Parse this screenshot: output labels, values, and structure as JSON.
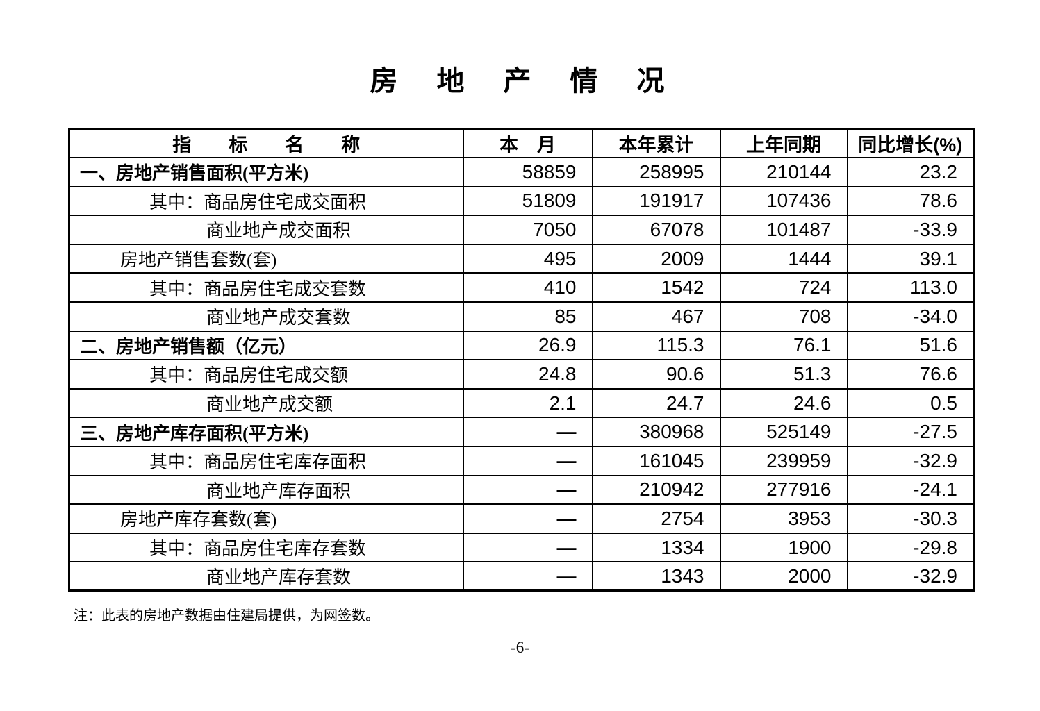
{
  "title": "房　地　产　情　况",
  "table": {
    "headers": [
      "指　　标　　名　　称",
      "本　月",
      "本年累计",
      "上年同期",
      "同比增长(%)"
    ],
    "rows": [
      {
        "label": "一、房地产销售面积(平方米)",
        "style": "section",
        "values": [
          "58859",
          "258995",
          "210144",
          "23.2"
        ]
      },
      {
        "label": "其中：商品房住宅成交面积",
        "style": "sub1",
        "values": [
          "51809",
          "191917",
          "107436",
          "78.6"
        ]
      },
      {
        "label": "商业地产成交面积",
        "style": "sub2",
        "values": [
          "7050",
          "67078",
          "101487",
          "-33.9"
        ]
      },
      {
        "label": "房地产销售套数(套)",
        "style": "item",
        "values": [
          "495",
          "2009",
          "1444",
          "39.1"
        ]
      },
      {
        "label": "其中：商品房住宅成交套数",
        "style": "sub1",
        "values": [
          "410",
          "1542",
          "724",
          "113.0"
        ]
      },
      {
        "label": "商业地产成交套数",
        "style": "sub2",
        "values": [
          "85",
          "467",
          "708",
          "-34.0"
        ]
      },
      {
        "label": "二、房地产销售额（亿元）",
        "style": "section",
        "values": [
          "26.9",
          "115.3",
          "76.1",
          "51.6"
        ]
      },
      {
        "label": "其中：商品房住宅成交额",
        "style": "sub1",
        "values": [
          "24.8",
          "90.6",
          "51.3",
          "76.6"
        ]
      },
      {
        "label": "商业地产成交额",
        "style": "sub2",
        "values": [
          "2.1",
          "24.7",
          "24.6",
          "0.5"
        ]
      },
      {
        "label": "三、房地产库存面积(平方米)",
        "style": "section",
        "values": [
          "—",
          "380968",
          "525149",
          "-27.5"
        ]
      },
      {
        "label": "其中：商品房住宅库存面积",
        "style": "sub1",
        "values": [
          "—",
          "161045",
          "239959",
          "-32.9"
        ]
      },
      {
        "label": "商业地产库存面积",
        "style": "sub2",
        "values": [
          "—",
          "210942",
          "277916",
          "-24.1"
        ]
      },
      {
        "label": "房地产库存套数(套)",
        "style": "item",
        "values": [
          "—",
          "2754",
          "3953",
          "-30.3"
        ]
      },
      {
        "label": "其中：商品房住宅库存套数",
        "style": "sub1",
        "values": [
          "—",
          "1334",
          "1900",
          "-29.8"
        ]
      },
      {
        "label": "商业地产库存套数",
        "style": "sub2",
        "values": [
          "—",
          "1343",
          "2000",
          "-32.9"
        ]
      }
    ]
  },
  "footnote": "注：此表的房地产数据由住建局提供，为网签数。",
  "page_number": "-6-"
}
